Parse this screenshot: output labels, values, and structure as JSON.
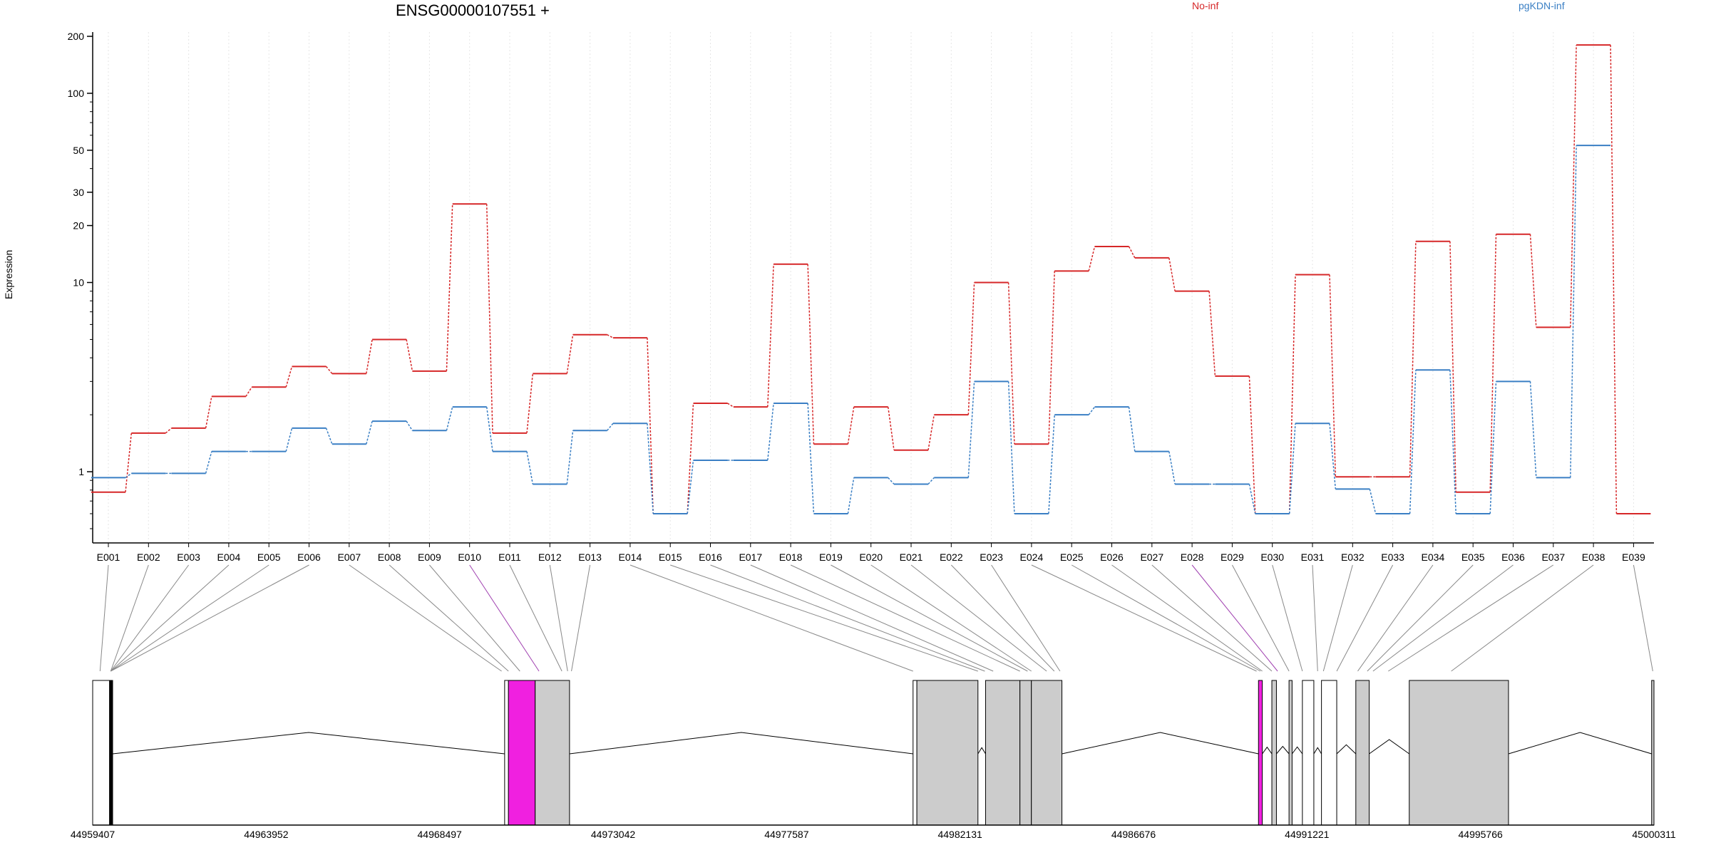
{
  "chart_data": {
    "type": "line",
    "title": "ENSG00000107551 +",
    "xlabel": "",
    "ylabel": "Expression",
    "y_scale": "log",
    "ylim": [
      0.5,
      220
    ],
    "y_ticks": [
      "1",
      "10",
      "20",
      "30",
      "50",
      "100",
      "200"
    ],
    "y_tick_values": [
      1,
      10,
      20,
      30,
      50,
      100,
      200
    ],
    "categories": [
      "E001",
      "E002",
      "E003",
      "E004",
      "E005",
      "E006",
      "E007",
      "E008",
      "E009",
      "E010",
      "E011",
      "E012",
      "E013",
      "E014",
      "E015",
      "E016",
      "E017",
      "E018",
      "E019",
      "E020",
      "E021",
      "E022",
      "E023",
      "E024",
      "E025",
      "E026",
      "E027",
      "E028",
      "E029",
      "E030",
      "E031",
      "E032",
      "E033",
      "E034",
      "E035",
      "E036",
      "E037",
      "E038",
      "E039"
    ],
    "series": [
      {
        "name": "No-inf",
        "color": "#d62728",
        "values": [
          0.78,
          1.6,
          1.7,
          2.5,
          2.8,
          3.6,
          3.3,
          5.0,
          3.4,
          26,
          1.6,
          3.3,
          5.3,
          5.1,
          0.6,
          2.3,
          2.2,
          12.5,
          1.4,
          2.2,
          1.3,
          2.0,
          10,
          1.4,
          11.5,
          15.5,
          13.5,
          9.0,
          3.2,
          0.6,
          11,
          0.94,
          0.94,
          16.5,
          0.78,
          18,
          5.8,
          180,
          0.6
        ]
      },
      {
        "name": "pgKDN-inf",
        "color": "#3a7fc4",
        "values": [
          0.93,
          0.98,
          0.98,
          1.28,
          1.28,
          1.7,
          1.4,
          1.85,
          1.65,
          2.2,
          1.28,
          0.86,
          1.65,
          1.8,
          0.6,
          1.15,
          1.15,
          2.3,
          0.6,
          0.93,
          0.86,
          0.93,
          3.0,
          0.6,
          2.0,
          2.2,
          1.28,
          0.86,
          0.86,
          0.6,
          1.8,
          0.81,
          0.6,
          3.45,
          0.6,
          3.0,
          0.93,
          53,
          null
        ]
      }
    ],
    "gene_axis": {
      "tick_labels": [
        "44959407",
        "44963952",
        "44968497",
        "44973042",
        "44977587",
        "44982131",
        "44986676",
        "44991221",
        "44995766",
        "45000311"
      ],
      "tick_values": [
        44959407,
        44963952,
        44968497,
        44973042,
        44977587,
        44982131,
        44986676,
        44991221,
        44995766,
        45000311
      ]
    },
    "exons": [
      {
        "start": 44959407,
        "end": 44959850,
        "fill": "#ffffff"
      },
      {
        "start": 44959850,
        "end": 44959930,
        "fill": "#000000"
      },
      {
        "start": 44970200,
        "end": 44970300,
        "fill": "#ffffff"
      },
      {
        "start": 44970300,
        "end": 44971000,
        "fill": "#f020e0"
      },
      {
        "start": 44971000,
        "end": 44971900,
        "fill": "#cccccc"
      },
      {
        "start": 44980900,
        "end": 44981000,
        "fill": "#ffffff"
      },
      {
        "start": 44981000,
        "end": 44982600,
        "fill": "#cccccc"
      },
      {
        "start": 44982800,
        "end": 44983700,
        "fill": "#cccccc"
      },
      {
        "start": 44983700,
        "end": 44984000,
        "fill": "#cccccc"
      },
      {
        "start": 44984000,
        "end": 44984800,
        "fill": "#cccccc"
      },
      {
        "start": 44989950,
        "end": 44990050,
        "fill": "#f020e0"
      },
      {
        "start": 44990300,
        "end": 44990420,
        "fill": "#cccccc"
      },
      {
        "start": 44990750,
        "end": 44990830,
        "fill": "#cccccc"
      },
      {
        "start": 44991100,
        "end": 44991400,
        "fill": "#ffffff"
      },
      {
        "start": 44991600,
        "end": 44992000,
        "fill": "#ffffff"
      },
      {
        "start": 44992500,
        "end": 44992850,
        "fill": "#cccccc"
      },
      {
        "start": 44993900,
        "end": 44996500,
        "fill": "#cccccc"
      },
      {
        "start": 45000250,
        "end": 45000311,
        "fill": "#cccccc"
      }
    ],
    "connector_targets": [
      44959600,
      44959880,
      44959880,
      44959880,
      44959880,
      44959880,
      44970120,
      44970300,
      44970600,
      44971100,
      44971700,
      44971850,
      44971950,
      44980900,
      44982600,
      44982780,
      44983000,
      44983700,
      44983900,
      44984000,
      44984400,
      44984600,
      44984750,
      44989900,
      44990000,
      44990050,
      44990300,
      44990450,
      44990750,
      44991100,
      44991500,
      44991650,
      44992000,
      44992550,
      44992800,
      44992950,
      44993350,
      44995000,
      45000280
    ],
    "highlight_categories": [
      "E010",
      "E028"
    ],
    "highlight_color": "#a040b0",
    "grid": true
  }
}
